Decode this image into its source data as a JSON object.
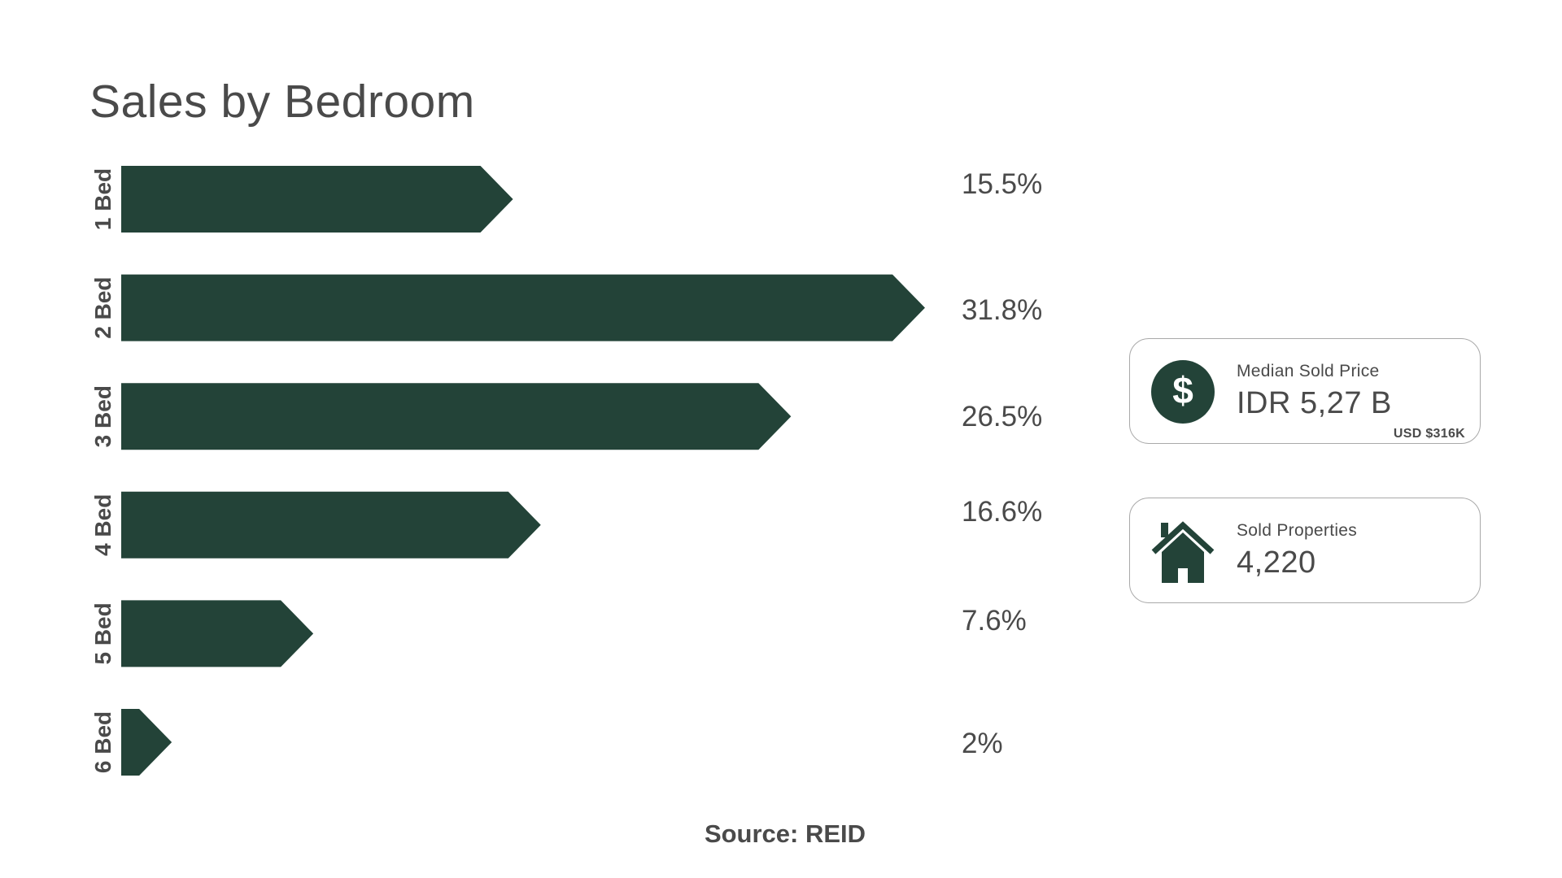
{
  "chart_data": {
    "type": "bar",
    "orientation": "horizontal",
    "title": "Sales by Bedroom",
    "categories": [
      "1 Bed",
      "2 Bed",
      "3 Bed",
      "4 Bed",
      "5 Bed",
      "6 Bed"
    ],
    "values": [
      15.5,
      31.8,
      26.5,
      16.6,
      7.6,
      2
    ],
    "value_labels": [
      "15.5%",
      "31.8%",
      "26.5%",
      "16.6%",
      "7.6%",
      "2%"
    ],
    "unit": "%",
    "xlim": [
      0,
      31.8
    ],
    "grid": false,
    "legend": "none",
    "bar_color": "#234338"
  },
  "kpis": {
    "median_price": {
      "label": "Median Sold Price",
      "value": "IDR 5,27 B",
      "sub": "USD $316K",
      "icon": "dollar-icon"
    },
    "sold_properties": {
      "label": "Sold Properties",
      "value": "4,220",
      "icon": "house-icon"
    }
  },
  "source": "Source: REID",
  "colors": {
    "accent": "#234338",
    "text": "#4a4a4a",
    "card_border": "#a9a9a9"
  }
}
